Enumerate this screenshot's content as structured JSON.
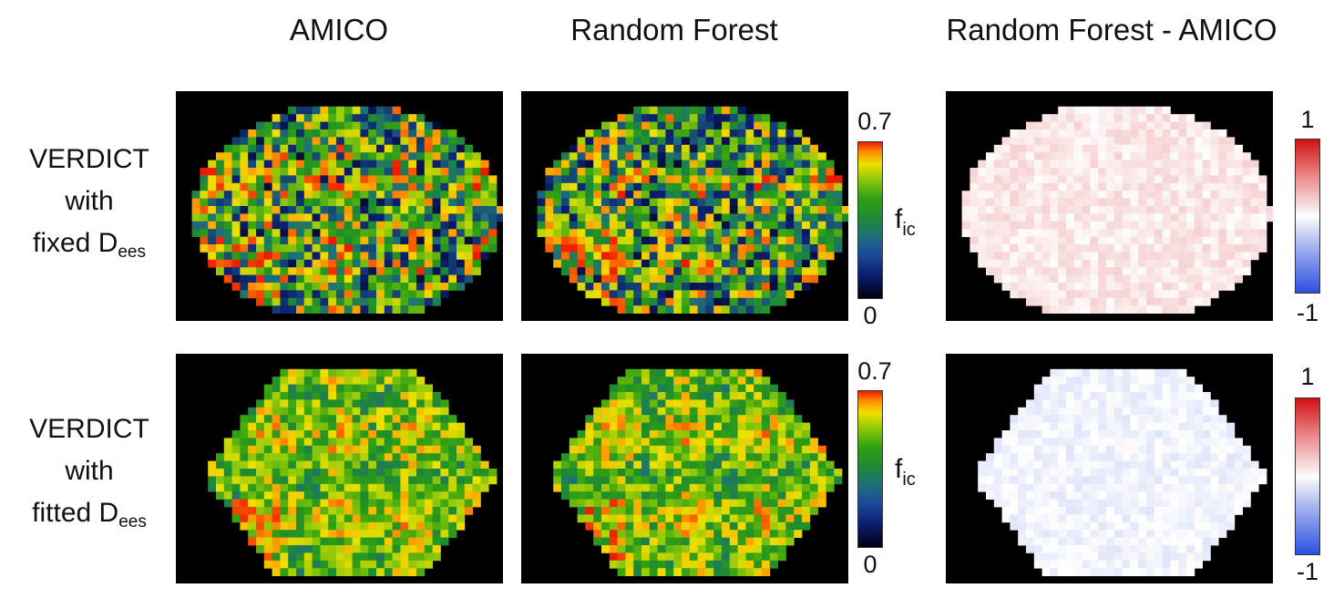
{
  "columns": [
    "AMICO",
    "Random Forest",
    "Random Forest - AMICO"
  ],
  "rows": [
    {
      "line1": "VERDICT",
      "line2": "with",
      "line3_prefix": "fixed D",
      "line3_sub": "ees"
    },
    {
      "line1": "VERDICT",
      "line2": "with",
      "line3_prefix": "fitted D",
      "line3_sub": "ees"
    }
  ],
  "colorbar_fic": {
    "max_label": "0.7",
    "min_label": "0",
    "label": "f",
    "label_sub": "ic"
  },
  "colorbar_diff": {
    "max_label": "1",
    "min_label": "-1"
  },
  "colors": {
    "background": "#000000",
    "fic_scale": [
      "#000010",
      "#0b1e70",
      "#1f6f7a",
      "#1e8a32",
      "#2fa012",
      "#8ec80a",
      "#f0e000",
      "#ff8a00",
      "#ee1a00"
    ],
    "diff_scale": [
      "#2b50e0",
      "#ffffff",
      "#d11010"
    ]
  }
}
